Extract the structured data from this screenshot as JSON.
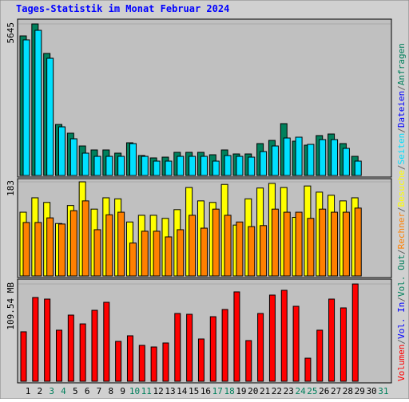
{
  "title": "Tages-Statistik im Monat Februar 2024",
  "legend_separator": "/",
  "chart_data": [
    {
      "type": "bar",
      "ylim": [
        0,
        5645
      ],
      "yticks": [
        5645
      ],
      "series": [
        {
          "name": "Anfragen",
          "color": "#00805c",
          "values": [
            5199,
            5645,
            4546,
            1901,
            1575,
            1099,
            951,
            951,
            832,
            1218,
            743,
            654,
            683,
            862,
            862,
            862,
            772,
            951,
            802,
            802,
            1188,
            1307,
            1931,
            1278,
            1129,
            1486,
            1545,
            1188,
            713
          ]
        },
        {
          "name": "Seiten",
          "color": "#00e0ff",
          "values": [
            5051,
            5407,
            4367,
            1812,
            1367,
            832,
            713,
            713,
            713,
            1188,
            713,
            535,
            535,
            713,
            713,
            713,
            535,
            743,
            713,
            683,
            891,
            1099,
            1396,
            1426,
            1159,
            1337,
            1337,
            1010,
            535
          ]
        }
      ],
      "legend_only": [
        {
          "name": "Dateien",
          "color": "#0000ff"
        }
      ]
    },
    {
      "type": "bar",
      "ylim": [
        0,
        183
      ],
      "yticks": [
        183
      ],
      "series": [
        {
          "name": "Besuche",
          "color": "#ffff00",
          "values": [
            124,
            152,
            143,
            102,
            137,
            183,
            130,
            152,
            150,
            105,
            118,
            118,
            112,
            129,
            172,
            146,
            143,
            178,
            99,
            150,
            171,
            180,
            172,
            114,
            175,
            163,
            157,
            146,
            152
          ]
        },
        {
          "name": "Rechner",
          "color": "#ff8000",
          "values": [
            104,
            104,
            113,
            101,
            127,
            146,
            90,
            119,
            124,
            64,
            87,
            87,
            76,
            90,
            118,
            93,
            130,
            118,
            105,
            96,
            98,
            130,
            124,
            124,
            112,
            130,
            124,
            124,
            132
          ]
        }
      ]
    },
    {
      "type": "bar",
      "ylim": [
        0,
        109.54
      ],
      "yticks": [
        {
          "value": 109.54,
          "label": "109.54 MB"
        }
      ],
      "categories": [
        "1",
        "2",
        "3",
        "4",
        "5",
        "6",
        "7",
        "8",
        "9",
        "10",
        "11",
        "12",
        "13",
        "14",
        "15",
        "16",
        "17",
        "18",
        "19",
        "20",
        "21",
        "22",
        "23",
        "24",
        "25",
        "26",
        "27",
        "28",
        "29",
        "30",
        "31"
      ],
      "x_label_colors": [
        "#000000",
        "#000000",
        "#00805c",
        "#00805c",
        "#000000",
        "#000000",
        "#000000",
        "#000000",
        "#000000",
        "#00805c",
        "#00805c",
        "#000000",
        "#000000",
        "#000000",
        "#000000",
        "#000000",
        "#00805c",
        "#00805c",
        "#000000",
        "#000000",
        "#000000",
        "#000000",
        "#000000",
        "#00805c",
        "#00805c",
        "#000000",
        "#000000",
        "#000000",
        "#000000",
        "#000000",
        "#00805c"
      ],
      "series": [
        {
          "name": "Volumen",
          "color": "#ff0000",
          "values": [
            55.7,
            94.3,
            92.5,
            57.5,
            74.5,
            64.6,
            79.9,
            88.9,
            44.9,
            51.2,
            40.4,
            38.6,
            43.1,
            76.3,
            75.4,
            47.6,
            72.7,
            80.8,
            100.6,
            45.8,
            76.3,
            97.0,
            102.4,
            84.4,
            26.0,
            57.5,
            92.5,
            82.6,
            109.5,
            null,
            null
          ]
        }
      ],
      "legend_only": [
        {
          "name": "Vol. In",
          "color": "#0000ff"
        },
        {
          "name": "Vol. Out",
          "color": "#00805c"
        }
      ]
    }
  ]
}
